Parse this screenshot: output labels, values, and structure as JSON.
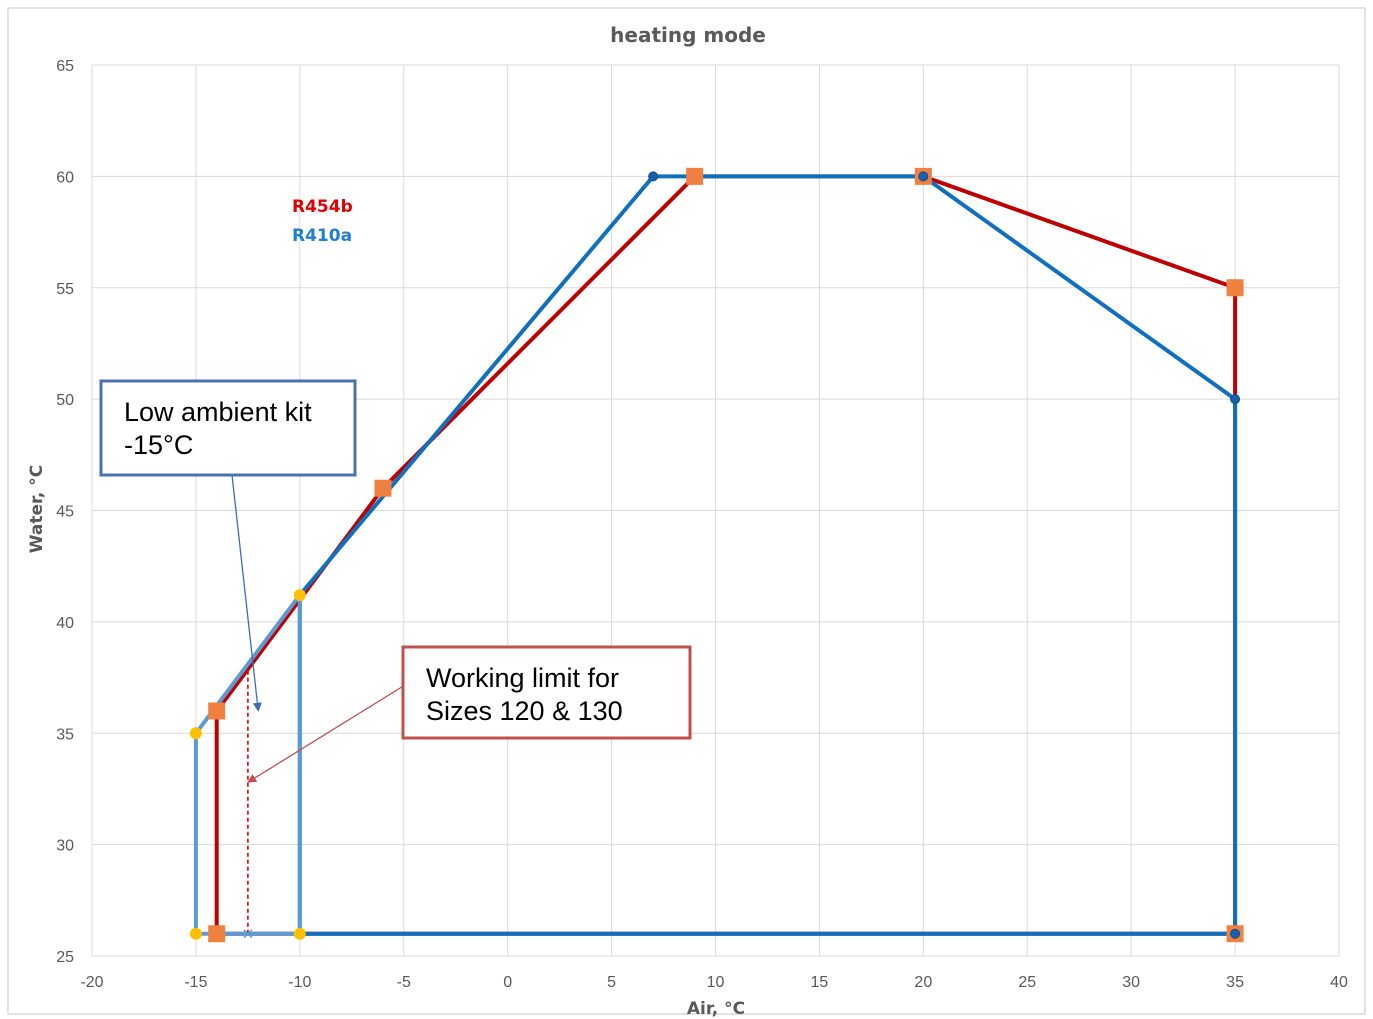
{
  "chart_data": {
    "type": "line",
    "title": "heating mode",
    "xlabel": "Air, °C",
    "ylabel": "Water, °C",
    "xlim": [
      -20,
      40
    ],
    "ylim": [
      25,
      65
    ],
    "x_ticks": [
      -20,
      -15,
      -10,
      -5,
      0,
      5,
      10,
      15,
      20,
      25,
      30,
      35,
      40
    ],
    "y_ticks": [
      25,
      30,
      35,
      40,
      45,
      50,
      55,
      60,
      65
    ],
    "grid": true,
    "legend": {
      "position": "top-left (inline text)",
      "entries": [
        {
          "label": "R454b",
          "color": "#e00000"
        },
        {
          "label": "R410a",
          "color": "#1f7fd0"
        }
      ]
    },
    "series": [
      {
        "name": "R454b",
        "color": "#c00000",
        "marker": "square",
        "marker_color": "#f08040",
        "points": [
          [
            -14,
            26
          ],
          [
            -14,
            36
          ],
          [
            -6,
            46
          ],
          [
            9,
            60
          ],
          [
            20,
            60
          ],
          [
            35,
            55
          ],
          [
            35,
            26
          ],
          [
            -14,
            26
          ]
        ]
      },
      {
        "name": "R410a",
        "color": "#1070c0",
        "marker": "circle",
        "marker_color": "#1a5faa",
        "points": [
          [
            -10,
            26
          ],
          [
            -10,
            41.2
          ],
          [
            7,
            60
          ],
          [
            20,
            60
          ],
          [
            35,
            50
          ],
          [
            35,
            26
          ],
          [
            -10,
            26
          ]
        ]
      },
      {
        "name": "Low ambient kit",
        "color": "#5b9bd5",
        "marker": "circle",
        "marker_color": "#ffc000",
        "points": [
          [
            -10,
            26
          ],
          [
            -15,
            26
          ],
          [
            -15,
            35
          ],
          [
            -10,
            41.2
          ],
          [
            -10,
            26
          ]
        ]
      },
      {
        "name": "Working limit",
        "color": "#e00000",
        "dashed": true,
        "points": [
          [
            -12.5,
            26
          ],
          [
            -12.5,
            37.8
          ]
        ]
      }
    ],
    "annotations": [
      {
        "id": "low-ambient",
        "lines": [
          "Low ambient kit",
          "-15°C"
        ],
        "border_color": "#4a72b0",
        "arrow_color": "#3d6eb5",
        "arrow_to": [
          -12,
          36
        ]
      },
      {
        "id": "working-limit",
        "lines": [
          "Working limit for",
          "Sizes 120 & 130"
        ],
        "border_color": "#c0504d",
        "arrow_color": "#c0504d",
        "arrow_to": [
          -12.5,
          32.8
        ]
      }
    ]
  }
}
